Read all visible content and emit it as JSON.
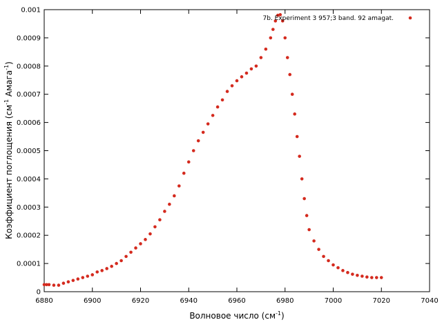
{
  "chart_data": {
    "type": "scatter",
    "xlabel": "Волновое число (см",
    "xlabel_sup": "-1",
    "xlabel_end": ")",
    "ylabel": "Коэффициент поглощения (см",
    "ylabel_sup1": "-1",
    "ylabel_mid": " Амага",
    "ylabel_sup2": "-1",
    "ylabel_end": ")",
    "xlim": [
      6880,
      7040
    ],
    "ylim": [
      0,
      0.001
    ],
    "xticks": [
      "6880",
      "6900",
      "6920",
      "6940",
      "6960",
      "6980",
      "7000",
      "7020",
      "7040"
    ],
    "xtick_values": [
      6880,
      6900,
      6920,
      6940,
      6960,
      6980,
      7000,
      7020,
      7040
    ],
    "yticks": [
      "0",
      "0.0001",
      "0.0002",
      "0.0003",
      "0.0004",
      "0.0005",
      "0.0006",
      "0.0007",
      "0.0008",
      "0.0009",
      "0.001"
    ],
    "ytick_values": [
      0,
      0.0001,
      0.0002,
      0.0003,
      0.0004,
      0.0005,
      0.0006,
      0.0007,
      0.0008,
      0.0009,
      0.001
    ],
    "legend_position": "top-right",
    "series": [
      {
        "name": "7b. Experiment  3  957;3 band. 92 amagat.",
        "color": "#d42a1e",
        "x": [
          6880,
          6881,
          6882,
          6884,
          6886,
          6888,
          6890,
          6892,
          6894,
          6896,
          6898,
          6900,
          6902,
          6904,
          6906,
          6908,
          6910,
          6912,
          6914,
          6916,
          6918,
          6920,
          6922,
          6924,
          6926,
          6928,
          6930,
          6932,
          6934,
          6936,
          6938,
          6940,
          6942,
          6944,
          6946,
          6948,
          6950,
          6952,
          6954,
          6956,
          6958,
          6960,
          6962,
          6964,
          6966,
          6968,
          6970,
          6972,
          6974,
          6975,
          6976,
          6977,
          6978,
          6979,
          6980,
          6981,
          6982,
          6983,
          6984,
          6985,
          6986,
          6987,
          6988,
          6989,
          6990,
          6992,
          6994,
          6996,
          6998,
          7000,
          7002,
          7004,
          7006,
          7008,
          7010,
          7012,
          7014,
          7016,
          7018,
          7020
        ],
        "y": [
          2.5e-05,
          2.5e-05,
          2.5e-05,
          2.3e-05,
          2.3e-05,
          3e-05,
          3.5e-05,
          4e-05,
          4.5e-05,
          5e-05,
          5.5e-05,
          6e-05,
          7e-05,
          7.5e-05,
          8.2e-05,
          9e-05,
          0.0001,
          0.00011,
          0.000125,
          0.00014,
          0.000155,
          0.00017,
          0.000185,
          0.000205,
          0.00023,
          0.000255,
          0.000285,
          0.00031,
          0.00034,
          0.000375,
          0.00042,
          0.00046,
          0.0005,
          0.000535,
          0.000565,
          0.000595,
          0.000625,
          0.000655,
          0.00068,
          0.00071,
          0.00073,
          0.000748,
          0.000762,
          0.000775,
          0.00079,
          0.0008,
          0.00083,
          0.00086,
          0.0009,
          0.00093,
          0.00096,
          0.00098,
          0.000982,
          0.00096,
          0.0009,
          0.00083,
          0.00077,
          0.0007,
          0.00063,
          0.00055,
          0.00048,
          0.0004,
          0.00033,
          0.00027,
          0.00022,
          0.00018,
          0.00015,
          0.000125,
          0.00011,
          9.5e-05,
          8.5e-05,
          7.5e-05,
          6.8e-05,
          6.2e-05,
          5.8e-05,
          5.5e-05,
          5.2e-05,
          5e-05,
          5e-05,
          5e-05
        ]
      }
    ]
  }
}
